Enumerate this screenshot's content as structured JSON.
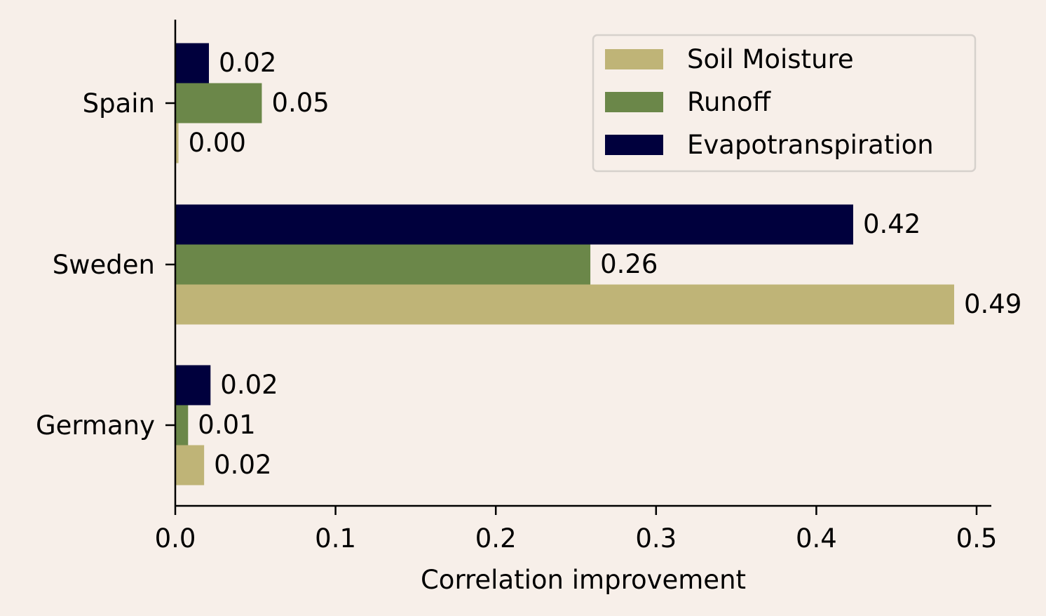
{
  "chart_data": {
    "type": "bar",
    "orientation": "horizontal",
    "categories": [
      "Spain",
      "Sweden",
      "Germany"
    ],
    "series": [
      {
        "name": "Soil Moisture",
        "color": "#bfb477",
        "values": [
          0.002,
          0.486,
          0.018
        ],
        "labels": [
          "0.00",
          "0.49",
          "0.02"
        ]
      },
      {
        "name": "Runoff",
        "color": "#6b8749",
        "values": [
          0.054,
          0.259,
          0.008
        ],
        "labels": [
          "0.05",
          "0.26",
          "0.01"
        ]
      },
      {
        "name": "Evapotranspiration",
        "color": "#00003d",
        "values": [
          0.021,
          0.423,
          0.022
        ],
        "labels": [
          "0.02",
          "0.42",
          "0.02"
        ]
      }
    ],
    "xlabel": "Correlation improvement",
    "ylabel": "",
    "xlim": [
      0,
      0.51
    ],
    "xticks": [
      0.0,
      0.1,
      0.2,
      0.3,
      0.4,
      0.5
    ],
    "xtick_labels": [
      "0.0",
      "0.1",
      "0.2",
      "0.3",
      "0.4",
      "0.5"
    ],
    "legend_position": "top-right",
    "grid": false,
    "background": "#f7efe9"
  }
}
